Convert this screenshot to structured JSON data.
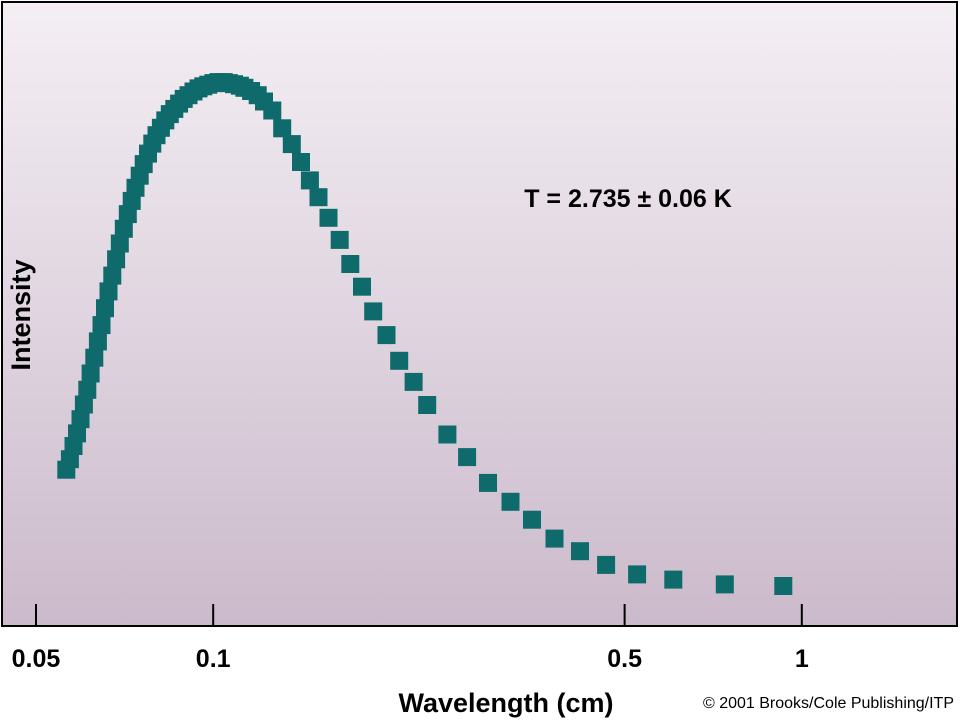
{
  "chart_data": {
    "type": "scatter",
    "title": "",
    "xlabel": "Wavelength (cm)",
    "ylabel": "Intensity",
    "x_scale": "log",
    "xlim": [
      0.05,
      2.0
    ],
    "ylim": [
      0,
      1.0
    ],
    "x_ticks": [
      {
        "value": 0.05,
        "label": "0.05"
      },
      {
        "value": 0.1,
        "label": "0.1"
      },
      {
        "value": 0.5,
        "label": "0.5"
      },
      {
        "value": 1,
        "label": "1"
      }
    ],
    "y_ticks": [],
    "grid": false,
    "legend": "none",
    "annotation": "T = 2.735 ± 0.06 K",
    "credit": "© 2001 Brooks/Cole Publishing/ITP",
    "marker_color": "#0f6b6b",
    "marker_shape": "square",
    "background_gradient": [
      "#f4eff4",
      "#cbbacb"
    ],
    "series": [
      {
        "points": [
          [
            0.0563,
            0.261
          ],
          [
            0.0571,
            0.281
          ],
          [
            0.0579,
            0.306
          ],
          [
            0.0587,
            0.33
          ],
          [
            0.0595,
            0.357
          ],
          [
            0.0603,
            0.385
          ],
          [
            0.0611,
            0.413
          ],
          [
            0.0619,
            0.444
          ],
          [
            0.0628,
            0.474
          ],
          [
            0.0637,
            0.505
          ],
          [
            0.0646,
            0.536
          ],
          [
            0.0655,
            0.568
          ],
          [
            0.0664,
            0.6
          ],
          [
            0.0674,
            0.63
          ],
          [
            0.0684,
            0.661
          ],
          [
            0.0694,
            0.691
          ],
          [
            0.0705,
            0.719
          ],
          [
            0.0716,
            0.747
          ],
          [
            0.0727,
            0.772
          ],
          [
            0.0738,
            0.797
          ],
          [
            0.075,
            0.82
          ],
          [
            0.0762,
            0.842
          ],
          [
            0.0775,
            0.862
          ],
          [
            0.0788,
            0.881
          ],
          [
            0.0801,
            0.897
          ],
          [
            0.0815,
            0.911
          ],
          [
            0.0829,
            0.925
          ],
          [
            0.0844,
            0.937
          ],
          [
            0.0859,
            0.947
          ],
          [
            0.0875,
            0.957
          ],
          [
            0.0891,
            0.966
          ],
          [
            0.0908,
            0.973
          ],
          [
            0.0926,
            0.98
          ],
          [
            0.0944,
            0.986
          ],
          [
            0.0962,
            0.99
          ],
          [
            0.0981,
            0.993
          ],
          [
            0.1001,
            0.996
          ],
          [
            0.1021,
            0.998
          ],
          [
            0.1042,
            0.998
          ],
          [
            0.1063,
            0.996
          ],
          [
            0.1085,
            0.994
          ],
          [
            0.111,
            0.991
          ],
          [
            0.113,
            0.987
          ],
          [
            0.116,
            0.981
          ],
          [
            0.119,
            0.973
          ],
          [
            0.122,
            0.961
          ],
          [
            0.126,
            0.944
          ],
          [
            0.131,
            0.91
          ],
          [
            0.136,
            0.88
          ],
          [
            0.141,
            0.846
          ],
          [
            0.146,
            0.811
          ],
          [
            0.151,
            0.779
          ],
          [
            0.157,
            0.74
          ],
          [
            0.164,
            0.698
          ],
          [
            0.171,
            0.652
          ],
          [
            0.179,
            0.609
          ],
          [
            0.187,
            0.562
          ],
          [
            0.197,
            0.517
          ],
          [
            0.207,
            0.468
          ],
          [
            0.219,
            0.428
          ],
          [
            0.231,
            0.384
          ],
          [
            0.25,
            0.328
          ],
          [
            0.27,
            0.285
          ],
          [
            0.293,
            0.236
          ],
          [
            0.32,
            0.2
          ],
          [
            0.348,
            0.166
          ],
          [
            0.38,
            0.13
          ],
          [
            0.42,
            0.106
          ],
          [
            0.465,
            0.08
          ],
          [
            0.525,
            0.062
          ],
          [
            0.605,
            0.052
          ],
          [
            0.74,
            0.043
          ],
          [
            0.93,
            0.04
          ]
        ]
      }
    ]
  }
}
